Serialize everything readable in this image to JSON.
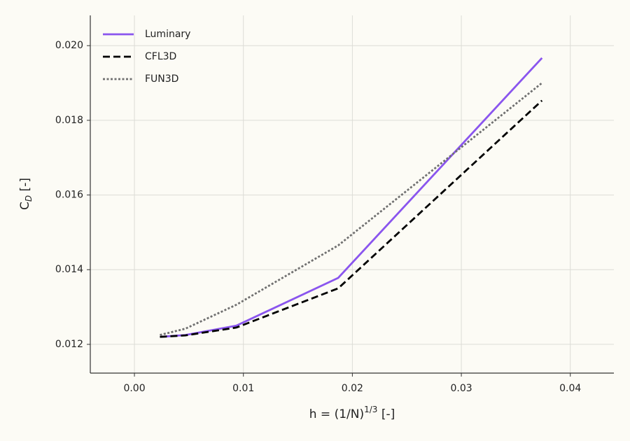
{
  "chart_data": {
    "type": "line",
    "xlabel": {
      "text": "h = (1/N)",
      "sup": "1/3",
      "suffix": " [-]"
    },
    "ylabel": {
      "text": "C",
      "sub": "D",
      "suffix": " [-]"
    },
    "x": [
      0.00234,
      0.00468,
      0.00935,
      0.0187,
      0.0374
    ],
    "series": [
      {
        "name": "Luminary",
        "color": "#8a55ee",
        "dash": "solid",
        "values": [
          0.0122,
          0.01225,
          0.0125,
          0.01378,
          0.01967
        ]
      },
      {
        "name": "CFL3D",
        "color": "#000000",
        "dash": "dashed",
        "values": [
          0.0122,
          0.01224,
          0.01245,
          0.0135,
          0.01853
        ]
      },
      {
        "name": "FUN3D",
        "color": "#707070",
        "dash": "dotted",
        "values": [
          0.01225,
          0.01242,
          0.01306,
          0.01465,
          0.019
        ]
      }
    ],
    "xlim": [
      -0.00405,
      0.044
    ],
    "ylim": [
      0.01123,
      0.02081
    ],
    "xticks": [
      {
        "value": 0,
        "label": "0.00"
      },
      0.01,
      0.02,
      0.03,
      0.04
    ],
    "yticks": [
      0.012,
      0.014,
      0.016,
      0.018,
      {
        "value": 0.02,
        "label": "0.020"
      }
    ],
    "grid": true,
    "legend": "upper-left"
  }
}
